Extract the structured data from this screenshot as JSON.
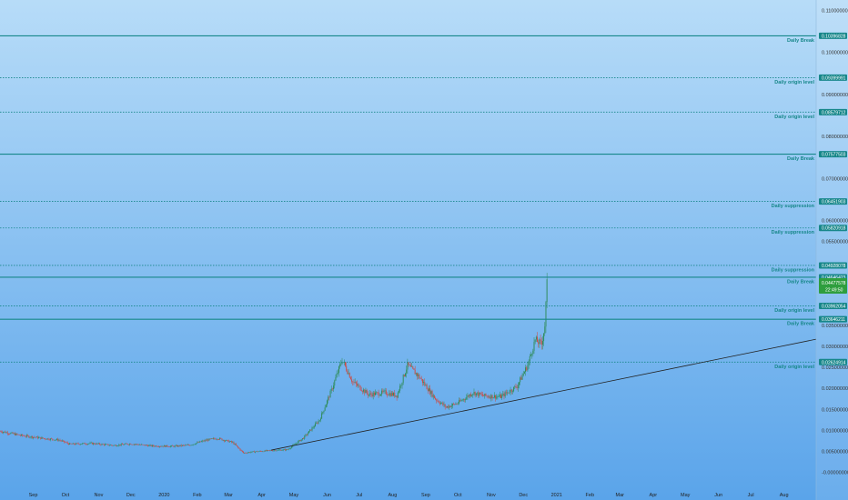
{
  "chart_data": {
    "type": "candlestick",
    "colors": {
      "bg_top": "#b7dcf8",
      "bg_bottom": "#5aa4ea",
      "level_line": "#17878a",
      "up": "#2e8b57",
      "down": "#d0473d",
      "trendline": "#222222",
      "price_label_last": "#2e9e3e"
    },
    "y_axis": {
      "range": [
        -0.004,
        0.1125
      ],
      "ticks": [
        {
          "value": 0.11,
          "label": "0.11000000"
        },
        {
          "value": 0.1,
          "label": "0.10000000"
        },
        {
          "value": 0.09,
          "label": "0.09000000"
        },
        {
          "value": 0.08,
          "label": "0.08000000"
        },
        {
          "value": 0.07,
          "label": "0.07000000"
        },
        {
          "value": 0.06,
          "label": "0.06000000"
        },
        {
          "value": 0.055,
          "label": "0.05500000"
        },
        {
          "value": 0.035,
          "label": "0.03500000"
        },
        {
          "value": 0.03,
          "label": "0.03000000"
        },
        {
          "value": 0.025,
          "label": "0.02500000"
        },
        {
          "value": 0.02,
          "label": "0.02000000"
        },
        {
          "value": 0.015,
          "label": "0.01500000"
        },
        {
          "value": 0.01,
          "label": "0.01000000"
        },
        {
          "value": 0.005,
          "label": "0.00500000"
        },
        {
          "value": 0.0,
          "label": "-0.00000000"
        }
      ]
    },
    "x_axis": {
      "range": [
        "2019-08-01",
        "2021-08-31"
      ],
      "ticks": [
        {
          "date": "2019-09-01",
          "label": "Sep"
        },
        {
          "date": "2019-10-01",
          "label": "Oct"
        },
        {
          "date": "2019-11-01",
          "label": "Nov"
        },
        {
          "date": "2019-12-01",
          "label": "Dec"
        },
        {
          "date": "2020-01-01",
          "label": "2020"
        },
        {
          "date": "2020-02-01",
          "label": "Feb"
        },
        {
          "date": "2020-03-01",
          "label": "Mar"
        },
        {
          "date": "2020-04-01",
          "label": "Apr"
        },
        {
          "date": "2020-05-01",
          "label": "May"
        },
        {
          "date": "2020-06-01",
          "label": "Jun"
        },
        {
          "date": "2020-07-01",
          "label": "Jul"
        },
        {
          "date": "2020-08-01",
          "label": "Aug"
        },
        {
          "date": "2020-09-01",
          "label": "Sep"
        },
        {
          "date": "2020-10-01",
          "label": "Oct"
        },
        {
          "date": "2020-11-01",
          "label": "Nov"
        },
        {
          "date": "2020-12-01",
          "label": "Dec"
        },
        {
          "date": "2021-01-01",
          "label": "2021"
        },
        {
          "date": "2021-02-01",
          "label": "Feb"
        },
        {
          "date": "2021-03-01",
          "label": "Mar"
        },
        {
          "date": "2021-04-01",
          "label": "Apr"
        },
        {
          "date": "2021-05-01",
          "label": "May"
        },
        {
          "date": "2021-06-01",
          "label": "Jun"
        },
        {
          "date": "2021-07-01",
          "label": "Jul"
        },
        {
          "date": "2021-08-01",
          "label": "Aug"
        }
      ]
    },
    "levels": [
      {
        "name": "Daily Break",
        "price": 0.10396828,
        "label": "0.10396828",
        "style": "solid"
      },
      {
        "name": "Daily origin level",
        "price": 0.09399991,
        "label": "0.09399991",
        "style": "dotted"
      },
      {
        "name": "Daily origin level",
        "price": 0.08579712,
        "label": "0.08579712",
        "style": "dotted"
      },
      {
        "name": "Daily Break",
        "price": 0.07577503,
        "label": "0.07577503",
        "style": "solid"
      },
      {
        "name": "Daily suppression",
        "price": 0.06451903,
        "label": "0.06451903",
        "style": "dotted"
      },
      {
        "name": "Daily suppression",
        "price": 0.05820918,
        "label": "0.05820918",
        "style": "dotted"
      },
      {
        "name": "Daily suppression",
        "price": 0.04928078,
        "label": "0.04928078",
        "style": "dotted"
      },
      {
        "name": "Daily Break",
        "price": 0.04646423,
        "label": "0.04646423",
        "style": "solid"
      },
      {
        "name": "Daily origin level",
        "price": 0.03962054,
        "label": "0.03962054",
        "style": "dotted"
      },
      {
        "name": "Daily Break",
        "price": 0.03646211,
        "label": "0.03646211",
        "style": "solid"
      },
      {
        "name": "Daily origin level",
        "price": 0.02624914,
        "label": "0.02624914",
        "style": "dotted"
      }
    ],
    "last_price": {
      "value": 0.04477578,
      "label": "0.04477578",
      "countdown": "22:49:50"
    },
    "trendline": [
      {
        "date": "2020-04-10",
        "value": 0.0053
      },
      {
        "date": "2021-08-31",
        "value": 0.0317
      }
    ],
    "closes": [
      {
        "date": "2019-08-01",
        "value": 0.0098
      },
      {
        "date": "2019-08-20",
        "value": 0.0088
      },
      {
        "date": "2019-09-10",
        "value": 0.0081
      },
      {
        "date": "2019-09-25",
        "value": 0.0077
      },
      {
        "date": "2019-10-05",
        "value": 0.0067
      },
      {
        "date": "2019-10-25",
        "value": 0.0069
      },
      {
        "date": "2019-11-15",
        "value": 0.0064
      },
      {
        "date": "2019-12-01",
        "value": 0.0068
      },
      {
        "date": "2019-12-20",
        "value": 0.0063
      },
      {
        "date": "2020-01-10",
        "value": 0.0062
      },
      {
        "date": "2020-01-25",
        "value": 0.0065
      },
      {
        "date": "2020-02-10",
        "value": 0.0077
      },
      {
        "date": "2020-02-20",
        "value": 0.0081
      },
      {
        "date": "2020-03-05",
        "value": 0.0071
      },
      {
        "date": "2020-03-15",
        "value": 0.0046
      },
      {
        "date": "2020-03-25",
        "value": 0.0049
      },
      {
        "date": "2020-04-10",
        "value": 0.0052
      },
      {
        "date": "2020-04-25",
        "value": 0.0054
      },
      {
        "date": "2020-05-10",
        "value": 0.0082
      },
      {
        "date": "2020-05-25",
        "value": 0.0125
      },
      {
        "date": "2020-06-05",
        "value": 0.0195
      },
      {
        "date": "2020-06-15",
        "value": 0.0268
      },
      {
        "date": "2020-06-25",
        "value": 0.0215
      },
      {
        "date": "2020-07-10",
        "value": 0.0185
      },
      {
        "date": "2020-07-25",
        "value": 0.019
      },
      {
        "date": "2020-08-05",
        "value": 0.0183
      },
      {
        "date": "2020-08-15",
        "value": 0.0255
      },
      {
        "date": "2020-08-25",
        "value": 0.023
      },
      {
        "date": "2020-09-10",
        "value": 0.0175
      },
      {
        "date": "2020-09-20",
        "value": 0.0155
      },
      {
        "date": "2020-10-01",
        "value": 0.0165
      },
      {
        "date": "2020-10-15",
        "value": 0.019
      },
      {
        "date": "2020-10-25",
        "value": 0.0182
      },
      {
        "date": "2020-11-10",
        "value": 0.018
      },
      {
        "date": "2020-11-25",
        "value": 0.0205
      },
      {
        "date": "2020-12-05",
        "value": 0.0255
      },
      {
        "date": "2020-12-12",
        "value": 0.0315
      },
      {
        "date": "2020-12-18",
        "value": 0.0305
      },
      {
        "date": "2020-12-21",
        "value": 0.035
      },
      {
        "date": "2020-12-23",
        "value": 0.0448
      }
    ]
  }
}
